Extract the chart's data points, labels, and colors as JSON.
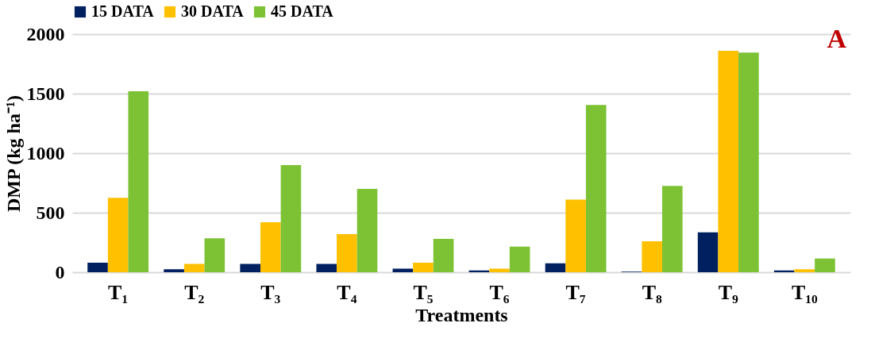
{
  "chart_data": {
    "type": "bar",
    "xlabel": "Treatments",
    "ylabel": "DMP (kg ha⁻¹)",
    "categories": [
      "T₁",
      "T₂",
      "T₃",
      "T₄",
      "T₅",
      "T₆",
      "T₇",
      "T₈",
      "T₉",
      "T₁₀"
    ],
    "series": [
      {
        "name": "15 DATA",
        "color": "#002060",
        "values": [
          80,
          25,
          70,
          70,
          30,
          15,
          75,
          5,
          335,
          15
        ]
      },
      {
        "name": "30 DATA",
        "color": "#ffc000",
        "values": [
          625,
          70,
          420,
          320,
          80,
          30,
          610,
          260,
          1860,
          25
        ]
      },
      {
        "name": "45 DATA",
        "color": "#7dc234",
        "values": [
          1520,
          285,
          900,
          700,
          280,
          215,
          1405,
          725,
          1845,
          115
        ]
      }
    ],
    "ylim": [
      0,
      2000
    ],
    "yticks": [
      0,
      500,
      1000,
      1500,
      2000
    ],
    "grid": "y",
    "legend": "top",
    "annotations": [
      "A"
    ]
  }
}
